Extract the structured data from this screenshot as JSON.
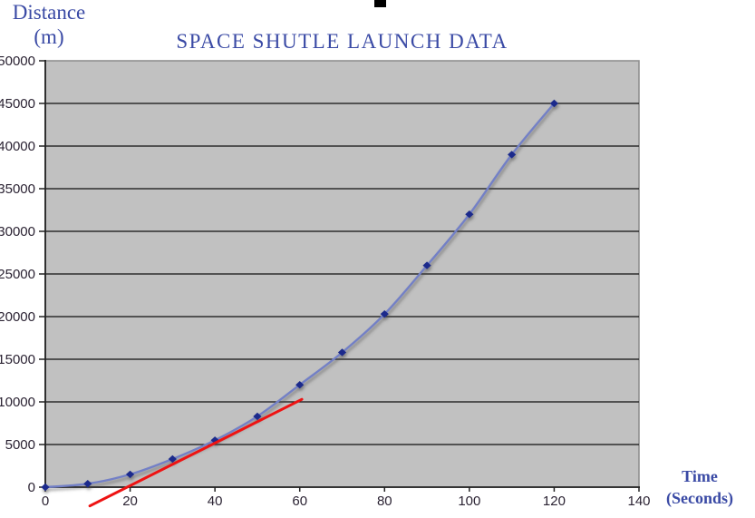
{
  "title": {
    "text": "SPACE SHUTLE LAUNCH DATA"
  },
  "axis_labels": {
    "y_line1": "Distance",
    "y_line2": "(m)",
    "x_line1": "Time",
    "x_line2": "(Seconds)"
  },
  "chart_data": {
    "type": "line",
    "title": "SPACE SHUTLE LAUNCH DATA",
    "xlabel": "Time (Seconds)",
    "ylabel": "Distance (m)",
    "x": [
      0,
      10,
      20,
      30,
      40,
      50,
      60,
      70,
      80,
      90,
      100,
      110,
      120
    ],
    "series": [
      {
        "name": "shuttle-distance",
        "values": [
          0,
          400,
          1500,
          3300,
          5500,
          8300,
          12000,
          15800,
          20300,
          26000,
          32000,
          39000,
          45000
        ]
      }
    ],
    "xlim": [
      0,
      140
    ],
    "ylim": [
      0,
      50000
    ],
    "xticks": [
      0,
      20,
      40,
      60,
      80,
      100,
      120,
      140
    ],
    "yticks": [
      0,
      5000,
      10000,
      15000,
      20000,
      25000,
      30000,
      35000,
      40000,
      45000,
      50000
    ],
    "grid": "horizontal",
    "legend": "none",
    "marker": "diamond",
    "line_smooth": true,
    "annotations": [
      {
        "type": "tangent-line",
        "name": "red-tangent-line",
        "from": {
          "x": 10.5,
          "y": -2200
        },
        "to": {
          "x": 60.5,
          "y": 10300
        },
        "color": "#ee1313",
        "width": 3
      }
    ],
    "colors": {
      "plot_background": "#c1c1c1",
      "plot_border": "#8f8f8f",
      "gridline": "#111111",
      "axis": "#222222",
      "tick_label": "#2b2333",
      "series_line": "#7380c6",
      "marker": "#1a2a8c",
      "heading_blue": "#3a4aa5"
    }
  }
}
